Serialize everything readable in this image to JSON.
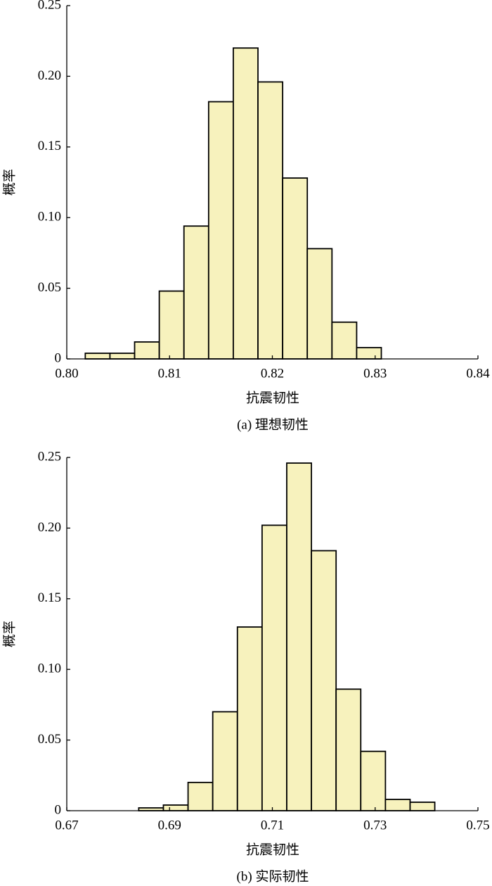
{
  "chart_data": [
    {
      "type": "histogram",
      "ylabel": "概率",
      "xlabel": "抗震韧性",
      "caption": "(a)  理想韧性",
      "color": "#f7f2bd",
      "bins": [
        0.8018,
        0.8042,
        0.8066,
        0.809,
        0.8114,
        0.8138,
        0.8162,
        0.8186,
        0.821,
        0.8234,
        0.8258,
        0.8282,
        0.8306
      ],
      "values": [
        0.004,
        0.004,
        0.012,
        0.048,
        0.094,
        0.182,
        0.22,
        0.196,
        0.128,
        0.078,
        0.026,
        0.008
      ],
      "xlim": [
        0.8,
        0.84
      ],
      "xticks": [
        {
          "value": 0.8,
          "label": "0.80"
        },
        0.81,
        0.82,
        0.83,
        0.84
      ],
      "ylim": [
        0,
        0.25
      ],
      "yticks": [
        0,
        0.05,
        {
          "value": 0.1,
          "label": "0.10"
        },
        0.15,
        {
          "value": 0.2,
          "label": "0.20"
        },
        0.25
      ]
    },
    {
      "type": "histogram",
      "ylabel": "概率",
      "xlabel": "抗震韧性",
      "caption": "(b)  实际韧性",
      "color": "#f7f2bd",
      "bins": [
        0.684,
        0.6888,
        0.6936,
        0.6984,
        0.7032,
        0.708,
        0.7128,
        0.7176,
        0.7224,
        0.7272,
        0.732,
        0.7368,
        0.7416
      ],
      "values": [
        0.002,
        0.004,
        0.02,
        0.07,
        0.13,
        0.202,
        0.246,
        0.184,
        0.086,
        0.042,
        0.008,
        0.006
      ],
      "xlim": [
        0.67,
        0.75
      ],
      "xticks": [
        0.67,
        0.69,
        0.71,
        0.73,
        0.75
      ],
      "ylim": [
        0,
        0.25
      ],
      "yticks": [
        0,
        0.05,
        {
          "value": 0.1,
          "label": "0.10"
        },
        0.15,
        {
          "value": 0.2,
          "label": "0.20"
        },
        0.25
      ]
    }
  ]
}
